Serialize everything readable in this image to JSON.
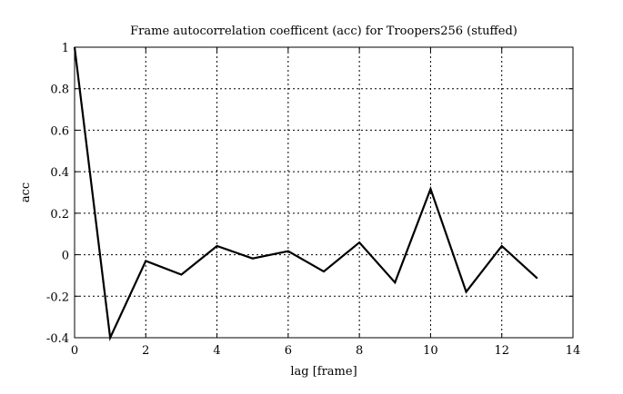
{
  "chart_data": {
    "type": "line",
    "title": "Frame autocorrelation coefficent (acc) for Troopers256 (stuffed)",
    "xlabel": "lag [frame]",
    "ylabel": "acc",
    "xlim": [
      0,
      14
    ],
    "ylim": [
      -0.4,
      1
    ],
    "xticks": [
      0,
      2,
      4,
      6,
      8,
      10,
      12,
      14
    ],
    "yticks": [
      -0.4,
      -0.2,
      0,
      0.2,
      0.4,
      0.6,
      0.8,
      1
    ],
    "grid": true,
    "line_color": "#000000",
    "x": [
      0,
      1,
      2,
      3,
      4,
      5,
      6,
      7,
      8,
      9,
      10,
      11,
      12,
      13
    ],
    "y": [
      1.0,
      -0.4,
      -0.03,
      -0.096,
      0.042,
      -0.018,
      0.017,
      -0.081,
      0.059,
      -0.134,
      0.317,
      -0.179,
      0.042,
      -0.114
    ]
  }
}
